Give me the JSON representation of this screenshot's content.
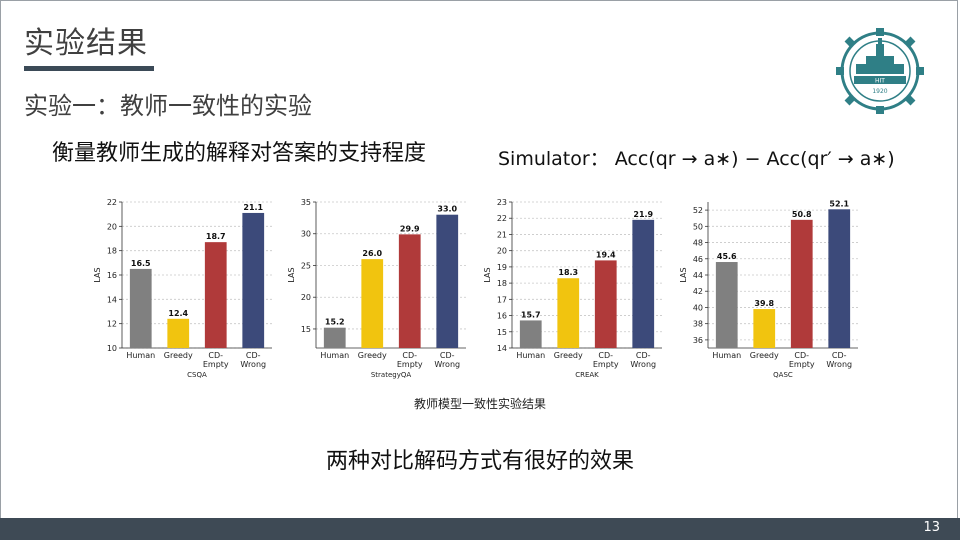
{
  "slide": {
    "title": "实验结果",
    "subtitle": "实验一：教师一致性的实验",
    "heading": "衡量教师生成的解释对答案的支持程度",
    "formula": "Simulator：  Acc(qr → a∗) − Acc(qr′ → a∗)",
    "caption": "教师模型一致性实验结果",
    "conclusion": "两种对比解码方式有很好的效果",
    "page_number": "13",
    "logo": {
      "icon": "hit-university-seal-icon",
      "year": "1920",
      "letters": "HIT"
    }
  },
  "colors": {
    "human": "#808080",
    "greedy": "#f1c40f",
    "cd_empty": "#b03a3a",
    "cd_wrong": "#3c4a7a",
    "footer": "#3e4a55",
    "title_bar": "#3b4a57"
  },
  "chart_data": [
    {
      "type": "bar",
      "categories": [
        "Human",
        "Greedy",
        "CD-\nEmpty",
        "CD-\nWrong"
      ],
      "values": [
        16.5,
        12.4,
        18.7,
        21.1
      ],
      "value_labels": [
        "16.5",
        "12.4",
        "18.7",
        "21.1"
      ],
      "ylabel": "LAS",
      "xlabel": "CSQA",
      "ylim": [
        10,
        22
      ],
      "yticks": [
        "10",
        "12",
        "14",
        "16",
        "18",
        "20",
        "22"
      ],
      "ytick_values": [
        10,
        12,
        14,
        16,
        18,
        20,
        22
      ]
    },
    {
      "type": "bar",
      "categories": [
        "Human",
        "Greedy",
        "CD-\nEmpty",
        "CD-\nWrong"
      ],
      "values": [
        15.2,
        26.0,
        29.9,
        33.0
      ],
      "value_labels": [
        "15.2",
        "26.0",
        "29.9",
        "33.0"
      ],
      "ylabel": "LAS",
      "xlabel": "StrategyQA",
      "ylim": [
        12,
        35
      ],
      "yticks": [
        "15",
        "20",
        "25",
        "30",
        "35"
      ],
      "ytick_values": [
        15,
        20,
        25,
        30,
        35
      ]
    },
    {
      "type": "bar",
      "categories": [
        "Human",
        "Greedy",
        "CD-\nEmpty",
        "CD-\nWrong"
      ],
      "values": [
        15.7,
        18.3,
        19.4,
        21.9
      ],
      "value_labels": [
        "15.7",
        "18.3",
        "19.4",
        "21.9"
      ],
      "ylabel": "LAS",
      "xlabel": "CREAK",
      "ylim": [
        14,
        23
      ],
      "yticks": [
        "14",
        "15",
        "16",
        "17",
        "18",
        "19",
        "20",
        "21",
        "22",
        "23"
      ],
      "ytick_values": [
        14,
        15,
        16,
        17,
        18,
        19,
        20,
        21,
        22,
        23
      ]
    },
    {
      "type": "bar",
      "categories": [
        "Human",
        "Greedy",
        "CD-\nEmpty",
        "CD-\nWrong"
      ],
      "values": [
        45.6,
        39.8,
        50.8,
        52.1
      ],
      "value_labels": [
        "45.6",
        "39.8",
        "50.8",
        "52.1"
      ],
      "ylabel": "LAS",
      "xlabel": "QASC",
      "ylim": [
        35,
        53
      ],
      "yticks": [
        "36",
        "38",
        "40",
        "42",
        "44",
        "46",
        "48",
        "50",
        "52"
      ],
      "ytick_values": [
        36,
        38,
        40,
        42,
        44,
        46,
        48,
        50,
        52
      ]
    }
  ]
}
